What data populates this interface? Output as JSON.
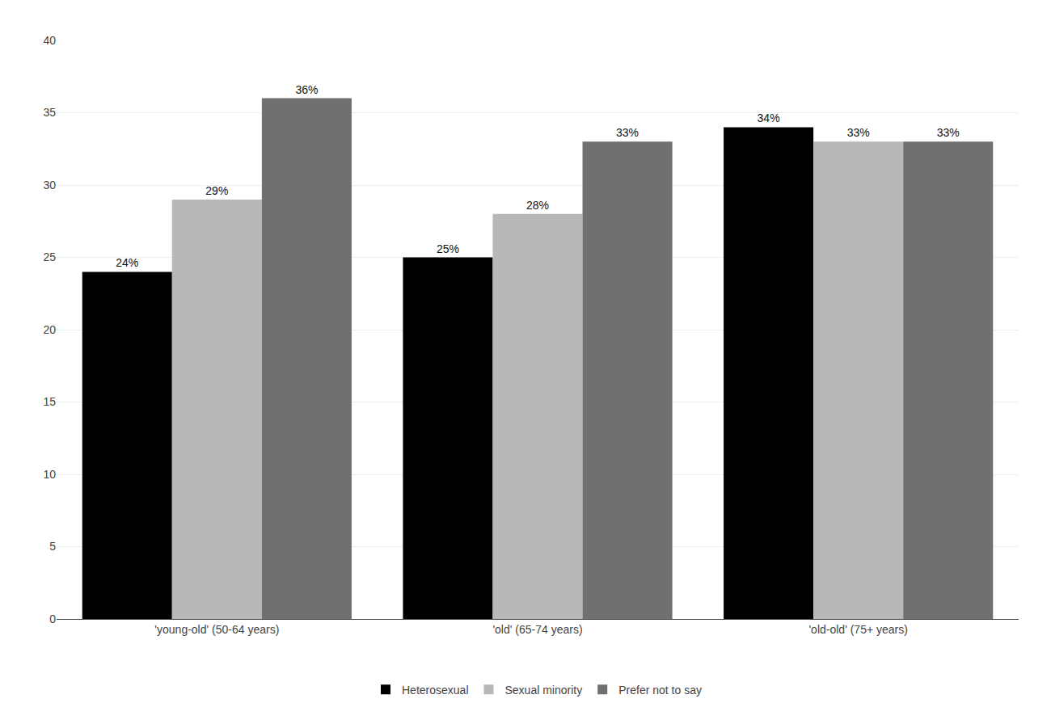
{
  "chart_data": {
    "type": "bar",
    "categories": [
      "'young-old' (50-64 years)",
      "'old' (65-74 years)",
      "'old-old' (75+ years)"
    ],
    "series": [
      {
        "name": "Heterosexual",
        "color": "#000000",
        "values": [
          24,
          25,
          34
        ],
        "value_labels": [
          "24%",
          "25%",
          "34%"
        ]
      },
      {
        "name": "Sexual minority",
        "color": "#b8b8b8",
        "values": [
          29,
          28,
          33
        ],
        "value_labels": [
          "29%",
          "28%",
          "33%"
        ]
      },
      {
        "name": "Prefer not to say",
        "color": "#707070",
        "values": [
          36,
          33,
          33
        ],
        "value_labels": [
          "36%",
          "33%",
          "33%"
        ]
      }
    ],
    "ylim": [
      0,
      40
    ],
    "yticks": [
      0,
      5,
      10,
      15,
      20,
      25,
      30,
      35,
      40
    ],
    "grid": true,
    "legend": "bottom",
    "data_labels": true
  }
}
